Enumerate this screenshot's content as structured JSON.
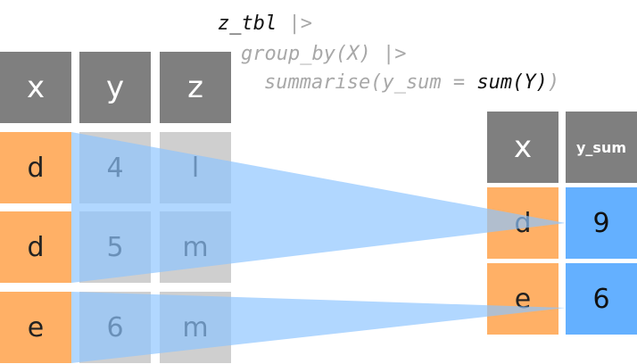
{
  "code": {
    "line1": {
      "name": "z_tbl",
      "pipe": " |>"
    },
    "line2": {
      "call": "group_by(X)",
      "pipe": " |>"
    },
    "line3": {
      "open": "summarise(y_sum = ",
      "func": "sum(Y)",
      "close": ")"
    }
  },
  "input_table": {
    "headers": [
      "x",
      "y",
      "z"
    ],
    "rows": [
      [
        "d",
        "4",
        "l"
      ],
      [
        "d",
        "5",
        "m"
      ],
      [
        "e",
        "6",
        "m"
      ]
    ]
  },
  "output_table": {
    "headers": [
      "x",
      "y_sum"
    ],
    "rows": [
      [
        "d",
        "9"
      ],
      [
        "e",
        "6"
      ]
    ]
  },
  "colors": {
    "header": "#7f7f7f",
    "key": "#ffb066",
    "value": "#cfcfcf",
    "result": "#64b0ff",
    "highlight": "#8cc4ff"
  }
}
